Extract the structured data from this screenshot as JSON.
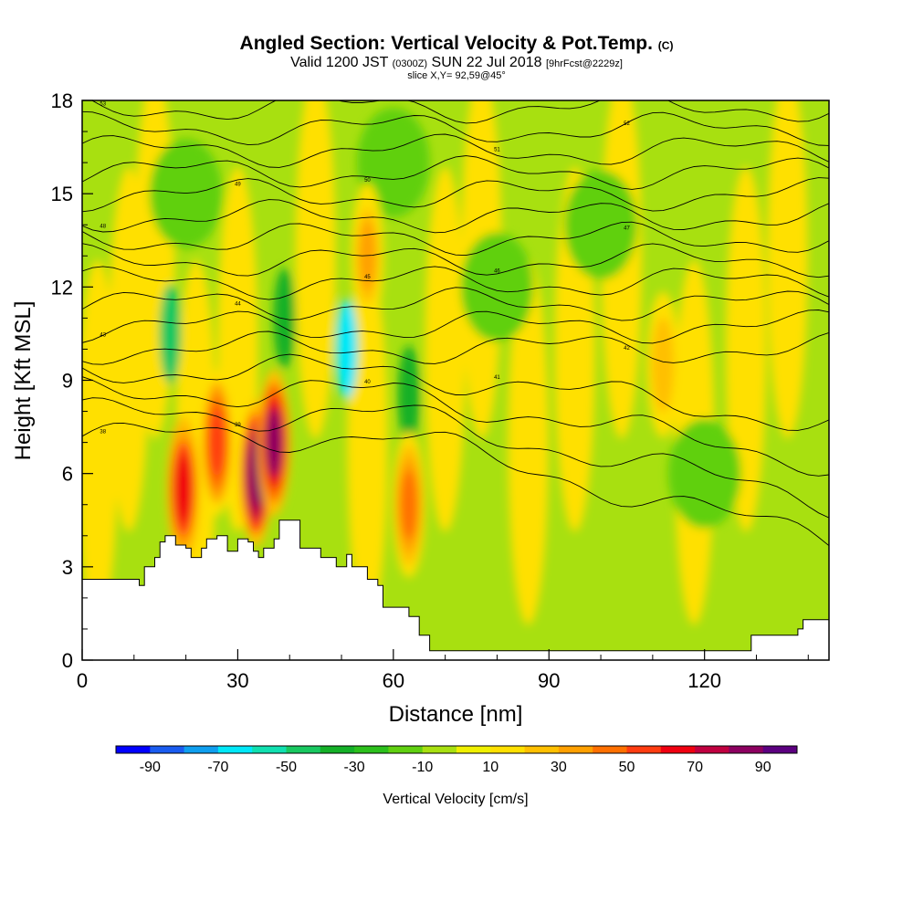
{
  "header": {
    "title": "Angled Section: Vertical Velocity & Pot.Temp.",
    "title_unit": "(C)",
    "valid_prefix": "Valid 1200 JST",
    "valid_utc": "(0300Z)",
    "valid_date": "SUN 22 Jul 2018",
    "forecast": "[9hrFcst@2229z]",
    "slice": "slice X,Y= 92,59@45°"
  },
  "chart_data": {
    "type": "heatmap",
    "xlabel": "Distance [nm]",
    "ylabel": "Height [Kft MSL]",
    "xlim": [
      0,
      144
    ],
    "ylim": [
      0,
      18
    ],
    "x_ticks": [
      0,
      30,
      60,
      90,
      120
    ],
    "y_ticks": [
      0,
      3,
      6,
      9,
      12,
      15,
      18
    ],
    "colorbar": {
      "label": "Vertical Velocity [cm/s]",
      "tick_labels": [
        "-90",
        "-70",
        "-50",
        "-30",
        "-10",
        "10",
        "30",
        "50",
        "70",
        "90"
      ],
      "tick_values": [
        -90,
        -70,
        -50,
        -30,
        -10,
        10,
        30,
        50,
        70,
        90
      ],
      "range": [
        -100,
        100
      ],
      "colors": [
        "#0000ff",
        "#1a5cf0",
        "#0f9fef",
        "#00e8f8",
        "#10e0b0",
        "#18c860",
        "#14b028",
        "#2cc01c",
        "#60d010",
        "#a8e010",
        "#f0f000",
        "#ffe000",
        "#ffc000",
        "#ffa000",
        "#ff7000",
        "#ff3c10",
        "#f00010",
        "#c00040",
        "#8c0060",
        "#5c0080"
      ]
    },
    "terrain": [
      [
        0,
        2.6
      ],
      [
        10,
        2.6
      ],
      [
        11,
        2.4
      ],
      [
        12,
        3.0
      ],
      [
        14,
        3.3
      ],
      [
        15,
        3.8
      ],
      [
        16,
        4.0
      ],
      [
        18,
        3.7
      ],
      [
        20,
        3.6
      ],
      [
        21,
        3.3
      ],
      [
        23,
        3.6
      ],
      [
        24,
        3.9
      ],
      [
        26,
        4.0
      ],
      [
        28,
        3.5
      ],
      [
        30,
        3.9
      ],
      [
        32,
        3.8
      ],
      [
        33,
        3.5
      ],
      [
        34,
        3.3
      ],
      [
        35,
        3.6
      ],
      [
        37,
        3.9
      ],
      [
        38,
        4.5
      ],
      [
        41,
        4.5
      ],
      [
        42,
        3.6
      ],
      [
        45,
        3.6
      ],
      [
        46,
        3.3
      ],
      [
        48,
        3.3
      ],
      [
        49,
        3.0
      ],
      [
        51,
        3.4
      ],
      [
        52,
        3.0
      ],
      [
        55,
        2.6
      ],
      [
        57,
        2.4
      ],
      [
        58,
        1.7
      ],
      [
        61,
        1.7
      ],
      [
        63,
        1.4
      ],
      [
        65,
        0.8
      ],
      [
        67,
        0.3
      ],
      [
        110,
        0.3
      ],
      [
        114,
        0.3
      ],
      [
        115,
        0.3
      ],
      [
        128,
        0.3
      ],
      [
        129,
        0.8
      ],
      [
        138,
        1.0
      ],
      [
        139,
        1.3
      ],
      [
        144,
        1.3
      ]
    ],
    "theta_contours": {
      "interval_c": 1,
      "labels": [
        "38",
        "39",
        "40",
        "41",
        "42",
        "43",
        "44",
        "45",
        "46",
        "47",
        "48",
        "49",
        "50",
        "51",
        "52",
        "53"
      ]
    },
    "updraft_cores": [
      {
        "x": 19.5,
        "y": 5.5,
        "value": 60
      },
      {
        "x": 26,
        "y": 7,
        "value": 55
      },
      {
        "x": 33.5,
        "y": 6,
        "value": 85
      },
      {
        "x": 37,
        "y": 7,
        "value": 80
      },
      {
        "x": 63,
        "y": 5,
        "value": 40
      },
      {
        "x": 55,
        "y": 13,
        "value": 30
      },
      {
        "x": 112,
        "y": 9.5,
        "value": 25
      }
    ],
    "downdraft_cores": [
      {
        "x": 17,
        "y": 10.5,
        "value": -45
      },
      {
        "x": 51,
        "y": 10,
        "value": -70
      },
      {
        "x": 63,
        "y": 8.5,
        "value": -40
      },
      {
        "x": 39,
        "y": 11,
        "value": -35
      }
    ]
  }
}
